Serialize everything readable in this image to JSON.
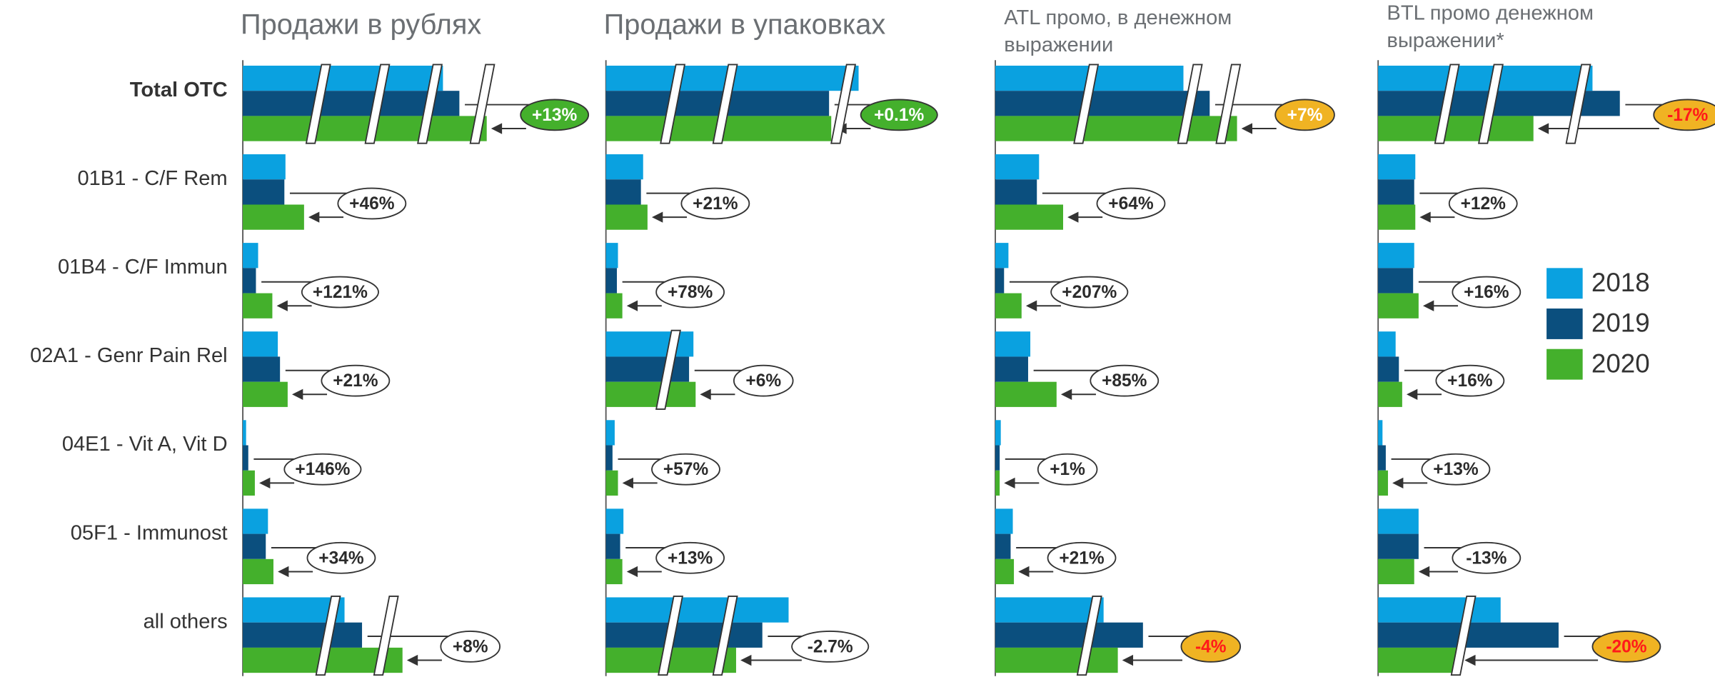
{
  "chart_data": [
    {
      "type": "bar",
      "orientation": "horizontal",
      "title": [
        "Продажи в рублях"
      ],
      "categories": [
        "Total OTC",
        "01B1 - C/F Rem",
        "01B4 - C/F Immun",
        "02A1 - Genr Pain Rel",
        "04E1 - Vit A, Vit D",
        "05F1 - Immunost",
        "all others"
      ],
      "series": [
        {
          "name": "2018",
          "color": "#0aa1e0",
          "values": [
            183,
            39,
            14,
            32,
            3,
            23,
            93
          ]
        },
        {
          "name": "2019",
          "color": "#0b4f7e",
          "values": [
            198,
            38,
            12,
            34,
            5,
            21,
            109
          ]
        },
        {
          "name": "2020",
          "color": "#44b02c",
          "values": [
            223,
            56,
            27,
            41,
            11,
            28,
            146
          ]
        }
      ],
      "changes": [
        "+13%",
        "+46%",
        "+121%",
        "+21%",
        "+146%",
        "+34%",
        "+8%"
      ],
      "change_fill": [
        "#44b02c",
        "#ffffff",
        "#ffffff",
        "#ffffff",
        "#ffffff",
        "#ffffff",
        "#ffffff"
      ],
      "change_color": [
        "#ffffff",
        "#2b2b2b",
        "#2b2b2b",
        "#2b2b2b",
        "#2b2b2b",
        "#2b2b2b",
        "#2b2b2b"
      ]
    },
    {
      "type": "bar",
      "orientation": "horizontal",
      "title": [
        "Продажи в упаковках"
      ],
      "series": [
        {
          "name": "2018",
          "color": "#0aa1e0",
          "values": [
            231,
            34,
            11,
            80,
            8,
            16,
            167
          ]
        },
        {
          "name": "2019",
          "color": "#0b4f7e",
          "values": [
            204,
            32,
            10,
            76,
            6,
            13,
            143
          ]
        },
        {
          "name": "2020",
          "color": "#44b02c",
          "values": [
            206,
            38,
            15,
            82,
            11,
            15,
            119
          ]
        }
      ],
      "changes": [
        "+0.1%",
        "+21%",
        "+78%",
        "+6%",
        "+57%",
        "+13%",
        "-2.7%"
      ],
      "change_fill": [
        "#44b02c",
        "#ffffff",
        "#ffffff",
        "#ffffff",
        "#ffffff",
        "#ffffff",
        "#ffffff"
      ],
      "change_color": [
        "#ffffff",
        "#2b2b2b",
        "#2b2b2b",
        "#2b2b2b",
        "#2b2b2b",
        "#2b2b2b",
        "#2b2b2b"
      ]
    },
    {
      "type": "bar",
      "orientation": "horizontal",
      "title": [
        "ATL промо, в денежном",
        "выражении"
      ],
      "series": [
        {
          "name": "2018",
          "color": "#0aa1e0",
          "values": [
            172,
            40,
            12,
            32,
            5,
            16,
            99
          ]
        },
        {
          "name": "2019",
          "color": "#0b4f7e",
          "values": [
            196,
            38,
            8,
            30,
            4,
            14,
            135
          ]
        },
        {
          "name": "2020",
          "color": "#44b02c",
          "values": [
            221,
            62,
            24,
            56,
            4,
            17,
            112
          ]
        }
      ],
      "changes": [
        "+7%",
        "+64%",
        "+207%",
        "+85%",
        "+1%",
        "+21%",
        "-4%"
      ],
      "change_fill": [
        "#f0b323",
        "#ffffff",
        "#ffffff",
        "#ffffff",
        "#ffffff",
        "#ffffff",
        "#f0b323"
      ],
      "change_color": [
        "#ffffff",
        "#2b2b2b",
        "#2b2b2b",
        "#2b2b2b",
        "#2b2b2b",
        "#2b2b2b",
        "#ff1a1a"
      ]
    },
    {
      "type": "bar",
      "orientation": "horizontal",
      "title": [
        "BTL промо денежном",
        "выражении*"
      ],
      "series": [
        {
          "name": "2018",
          "color": "#0aa1e0",
          "values": [
            196,
            34,
            33,
            16,
            4,
            37,
            112
          ]
        },
        {
          "name": "2019",
          "color": "#0b4f7e",
          "values": [
            221,
            33,
            32,
            19,
            7,
            37,
            165
          ]
        },
        {
          "name": "2020",
          "color": "#44b02c",
          "values": [
            142,
            34,
            37,
            22,
            9,
            33,
            75
          ]
        }
      ],
      "changes": [
        "-17%",
        "+12%",
        "+16%",
        "+16%",
        "+13%",
        "-13%",
        "-20%"
      ],
      "change_fill": [
        "#f0b323",
        "#ffffff",
        "#ffffff",
        "#ffffff",
        "#ffffff",
        "#ffffff",
        "#f0b323"
      ],
      "change_color": [
        "#ff1a1a",
        "#2b2b2b",
        "#2b2b2b",
        "#2b2b2b",
        "#2b2b2b",
        "#2b2b2b",
        "#ff1a1a"
      ]
    }
  ]
}
